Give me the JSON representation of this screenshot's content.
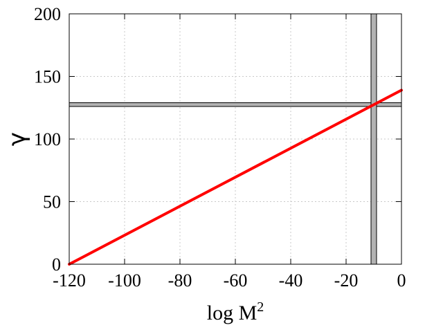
{
  "chart_data": {
    "type": "line",
    "title": "",
    "xlabel": {
      "base": "log M",
      "sup": "2"
    },
    "ylabel": "γ",
    "xlim": [
      -120,
      0
    ],
    "ylim": [
      0,
      200
    ],
    "xticks": [
      -120,
      -100,
      -80,
      -60,
      -40,
      -20,
      0
    ],
    "yticks": [
      0,
      50,
      100,
      150,
      200
    ],
    "grid": true,
    "series": [
      {
        "x": [
          -120,
          0
        ],
        "y": [
          0,
          139
        ],
        "color": "#ff0000"
      }
    ],
    "bands": [
      {
        "axis": "y",
        "from": 126,
        "to": 129,
        "color": "#b3b3b3"
      },
      {
        "axis": "x",
        "from": -11,
        "to": -9,
        "color": "#b3b3b3"
      }
    ]
  }
}
